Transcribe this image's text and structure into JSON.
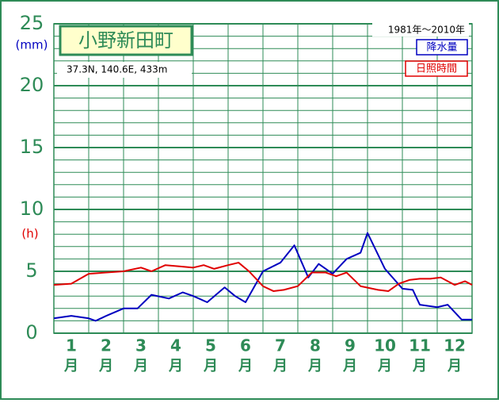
{
  "chart_data": {
    "type": "line",
    "title": "小野新田町",
    "location": "37.3N,  140.6E,  433m",
    "period": "1981年～2010年",
    "y_unit_precip": "(mm)",
    "y_unit_sun": "(h)",
    "categories": [
      "1",
      "2",
      "3",
      "4",
      "5",
      "6",
      "7",
      "8",
      "9",
      "10",
      "11",
      "12"
    ],
    "category_suffix": "月",
    "xlim": [
      0,
      12
    ],
    "xticks": [
      0,
      1,
      2,
      3,
      4,
      5,
      6,
      7,
      8,
      9,
      10,
      11,
      12
    ],
    "ylim": [
      0,
      25
    ],
    "yticks": [
      0,
      5,
      10,
      15,
      20,
      25
    ],
    "y_minor_ticks": [
      0,
      1,
      2,
      3,
      4,
      5,
      6,
      7,
      8,
      9,
      10,
      11,
      12,
      13,
      14,
      15,
      16,
      17,
      18,
      19,
      20,
      21,
      22,
      23,
      24,
      25
    ],
    "grid": true,
    "series": [
      {
        "name": "降水量",
        "color": "#0000c0",
        "x": [
          0,
          0.5,
          1.0,
          1.2,
          1.5,
          2.0,
          2.4,
          2.8,
          3.3,
          3.7,
          4.0,
          4.4,
          4.9,
          5.2,
          5.5,
          6.0,
          6.5,
          6.9,
          7.3,
          7.6,
          8.0,
          8.4,
          8.8,
          9.0,
          9.5,
          10.0,
          10.3,
          10.5,
          11.0,
          11.3,
          11.7,
          12
        ],
        "values": [
          1.2,
          1.4,
          1.2,
          1.0,
          1.4,
          2.0,
          2.0,
          3.1,
          2.8,
          3.3,
          3.0,
          2.5,
          3.7,
          3.0,
          2.5,
          5.0,
          5.7,
          7.1,
          4.5,
          5.6,
          4.8,
          6.0,
          6.5,
          8.1,
          5.2,
          3.6,
          3.5,
          2.3,
          2.1,
          2.3,
          1.1,
          1.1
        ]
      },
      {
        "name": "日照時間",
        "color": "#e00000",
        "x": [
          0,
          0.5,
          1.0,
          1.5,
          2.0,
          2.5,
          2.8,
          3.2,
          3.6,
          4.0,
          4.3,
          4.6,
          5.0,
          5.3,
          5.6,
          6.0,
          6.3,
          6.6,
          7.0,
          7.4,
          7.8,
          8.1,
          8.4,
          8.8,
          9.3,
          9.6,
          9.9,
          10.2,
          10.5,
          10.8,
          11.1,
          11.5,
          11.8,
          12
        ],
        "values": [
          3.9,
          4.0,
          4.8,
          4.9,
          5.0,
          5.3,
          5.0,
          5.5,
          5.4,
          5.3,
          5.5,
          5.2,
          5.5,
          5.7,
          5.0,
          3.8,
          3.4,
          3.5,
          3.8,
          4.9,
          4.9,
          4.6,
          4.9,
          3.8,
          3.5,
          3.4,
          4.0,
          4.3,
          4.4,
          4.4,
          4.5,
          3.9,
          4.2,
          3.9
        ]
      }
    ]
  }
}
